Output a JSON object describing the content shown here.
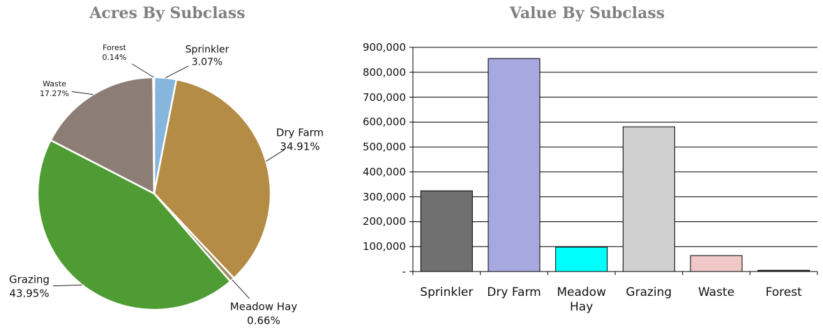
{
  "chart_data": [
    {
      "type": "pie",
      "title": "Acres By Subclass",
      "categories": [
        "Sprinkler",
        "Dry Farm",
        "Meadow Hay",
        "Grazing",
        "Waste",
        "Forest"
      ],
      "values": [
        3.07,
        34.91,
        0.66,
        43.95,
        17.27,
        0.14
      ],
      "value_labels": [
        "3.07%",
        "34.91%",
        "0.66%",
        "43.95%",
        "17.27%",
        "0.14%"
      ],
      "colors": [
        "#86b6dc",
        "#b48c46",
        "#9c8c62",
        "#4f9c34",
        "#8c7e74",
        "#6c8454"
      ]
    },
    {
      "type": "bar",
      "title": "Value By Subclass",
      "categories": [
        "Sprinkler",
        "Dry Farm",
        "Meadow Hay",
        "Grazing",
        "Waste",
        "Forest"
      ],
      "values": [
        324000,
        855000,
        98000,
        581000,
        64000,
        5000
      ],
      "colors": [
        "#707070",
        "#a8a8e0",
        "#00ffff",
        "#d0d0d0",
        "#f0c8c8",
        "#404040"
      ],
      "ylim": [
        0,
        900000
      ],
      "yticks": [
        {
          "value": 0,
          "label": "-"
        },
        {
          "value": 100000,
          "label": "100,000"
        },
        {
          "value": 200000,
          "label": "200,000"
        },
        {
          "value": 300000,
          "label": "300,000"
        },
        {
          "value": 400000,
          "label": "400,000"
        },
        {
          "value": 500000,
          "label": "500,000"
        },
        {
          "value": 600000,
          "label": "600,000"
        },
        {
          "value": 700000,
          "label": "700,000"
        },
        {
          "value": 800000,
          "label": "800,000"
        },
        {
          "value": 900000,
          "label": "900,000"
        }
      ],
      "grid": true
    }
  ]
}
